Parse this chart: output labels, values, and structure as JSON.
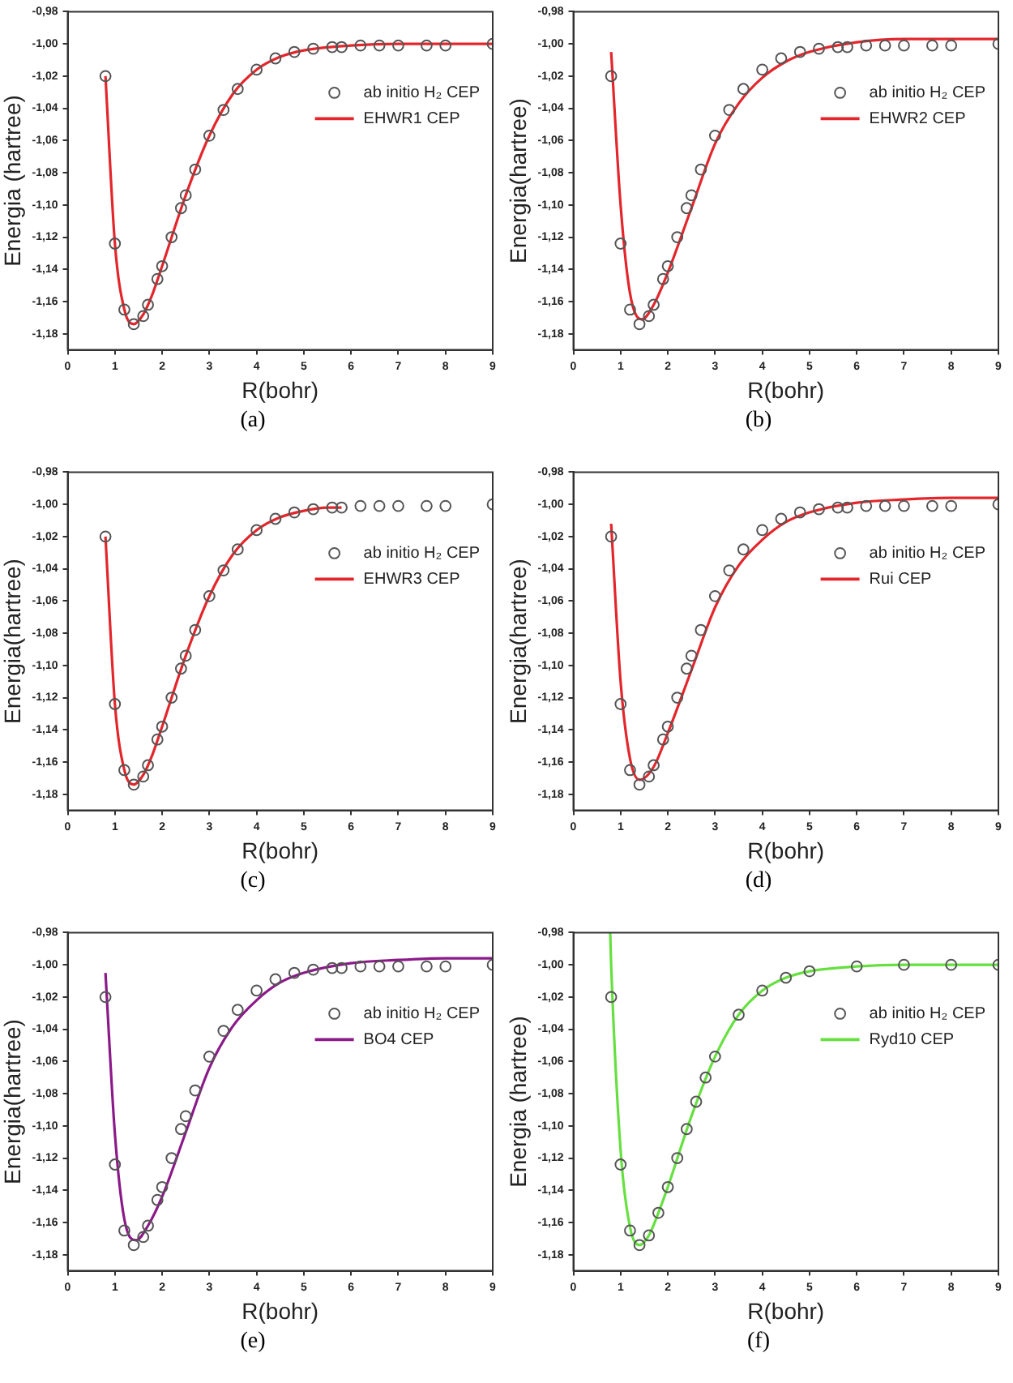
{
  "chart_data": [
    {
      "type": "scatter",
      "xlabel": "R(bohr)",
      "ylabel": "Energia (hartree)",
      "legend": "top right",
      "marker": "circle",
      "annotations": [
        "(a)"
      ],
      "xlim": [
        0,
        9
      ],
      "ylim": [
        -1.19,
        -0.98
      ],
      "xticks": [
        0,
        1,
        2,
        3,
        4,
        5,
        6,
        7,
        8,
        9
      ],
      "yticks": [
        {
          "value": -0.98,
          "label": "-0,98"
        },
        {
          "value": -1.0,
          "label": "-1,00"
        },
        {
          "value": -1.02,
          "label": "-1,02"
        },
        {
          "value": -1.04,
          "label": "-1,04"
        },
        {
          "value": -1.06,
          "label": "-1,06"
        },
        {
          "value": -1.08,
          "label": "-1,08"
        },
        {
          "value": -1.1,
          "label": "-1,10"
        },
        {
          "value": -1.12,
          "label": "-1,12"
        },
        {
          "value": -1.14,
          "label": "-1,14"
        },
        {
          "value": -1.16,
          "label": "-1,16"
        },
        {
          "value": -1.18,
          "label": "-1,18"
        }
      ],
      "series": [
        {
          "name": "ab initio H₂ CEP",
          "color": "#555555",
          "x": [
            0.8,
            1.0,
            1.2,
            1.4,
            1.6,
            1.7,
            1.9,
            2.0,
            2.2,
            2.4,
            2.5,
            2.7,
            3.0,
            3.3,
            3.6,
            4.0,
            4.4,
            4.8,
            5.2,
            5.6,
            5.8,
            6.2,
            6.6,
            7.0,
            7.6,
            8.0,
            9.0
          ],
          "values": [
            -1.02,
            -1.124,
            -1.165,
            -1.174,
            -1.169,
            -1.162,
            -1.146,
            -1.138,
            -1.12,
            -1.102,
            -1.094,
            -1.078,
            -1.057,
            -1.041,
            -1.028,
            -1.016,
            -1.009,
            -1.005,
            -1.003,
            -1.002,
            -1.002,
            -1.001,
            -1.001,
            -1.001,
            -1.001,
            -1.001,
            -1.0
          ]
        },
        {
          "name": "EHWR1 CEP",
          "type": "line",
          "marker": "none",
          "color": "#e3262b",
          "x": [
            0.8,
            1.0,
            1.2,
            1.4,
            1.6,
            1.8,
            2.0,
            2.5,
            3.0,
            3.5,
            4.0,
            4.5,
            5.0,
            6.0,
            7.0,
            8.0,
            9.0
          ],
          "values": [
            -1.02,
            -1.124,
            -1.165,
            -1.174,
            -1.168,
            -1.155,
            -1.138,
            -1.094,
            -1.057,
            -1.031,
            -1.016,
            -1.008,
            -1.004,
            -1.001,
            -1.0,
            -1.0,
            -1.0
          ]
        }
      ]
    },
    {
      "type": "scatter",
      "xlabel": "R(bohr)",
      "ylabel": "Energia(hartree)",
      "legend": "top right",
      "marker": "circle",
      "annotations": [
        "(b)"
      ],
      "xlim": [
        0,
        9
      ],
      "ylim": [
        -1.19,
        -0.98
      ],
      "xticks": [
        0,
        1,
        2,
        3,
        4,
        5,
        6,
        7,
        8,
        9
      ],
      "yticks": [
        {
          "value": -0.98,
          "label": "-0,98"
        },
        {
          "value": -1.0,
          "label": "-1,00"
        },
        {
          "value": -1.02,
          "label": "-1,02"
        },
        {
          "value": -1.04,
          "label": "-1,04"
        },
        {
          "value": -1.06,
          "label": "-1,06"
        },
        {
          "value": -1.08,
          "label": "-1,08"
        },
        {
          "value": -1.1,
          "label": "-1,10"
        },
        {
          "value": -1.12,
          "label": "-1,12"
        },
        {
          "value": -1.14,
          "label": "-1,14"
        },
        {
          "value": -1.16,
          "label": "-1,16"
        },
        {
          "value": -1.18,
          "label": "-1,18"
        }
      ],
      "series": [
        {
          "name": "ab initio H₂ CEP",
          "color": "#555555",
          "x": [
            0.8,
            1.0,
            1.2,
            1.4,
            1.6,
            1.7,
            1.9,
            2.0,
            2.2,
            2.4,
            2.5,
            2.7,
            3.0,
            3.3,
            3.6,
            4.0,
            4.4,
            4.8,
            5.2,
            5.6,
            5.8,
            6.2,
            6.6,
            7.0,
            7.6,
            8.0,
            9.0
          ],
          "values": [
            -1.02,
            -1.124,
            -1.165,
            -1.174,
            -1.169,
            -1.162,
            -1.146,
            -1.138,
            -1.12,
            -1.102,
            -1.094,
            -1.078,
            -1.057,
            -1.041,
            -1.028,
            -1.016,
            -1.009,
            -1.005,
            -1.003,
            -1.002,
            -1.002,
            -1.001,
            -1.001,
            -1.001,
            -1.001,
            -1.001,
            -1.0
          ]
        },
        {
          "name": "EHWR2 CEP",
          "type": "line",
          "marker": "none",
          "color": "#e3262b",
          "x": [
            0.8,
            1.0,
            1.2,
            1.45,
            1.7,
            2.0,
            2.5,
            3.0,
            3.5,
            4.0,
            4.5,
            5.0,
            6.0,
            7.0,
            8.0,
            9.0
          ],
          "values": [
            -1.005,
            -1.1,
            -1.155,
            -1.171,
            -1.162,
            -1.142,
            -1.102,
            -1.062,
            -1.037,
            -1.021,
            -1.011,
            -1.005,
            -0.999,
            -0.997,
            -0.997,
            -0.997
          ]
        }
      ]
    },
    {
      "type": "scatter",
      "xlabel": "R(bohr)",
      "ylabel": "Energia(hartree)",
      "legend": "top right",
      "marker": "circle",
      "annotations": [
        "(c)"
      ],
      "xlim": [
        0,
        9
      ],
      "ylim": [
        -1.19,
        -0.98
      ],
      "xticks": [
        0,
        1,
        2,
        3,
        4,
        5,
        6,
        7,
        8,
        9
      ],
      "yticks": [
        {
          "value": -0.98,
          "label": "-0,98"
        },
        {
          "value": -1.0,
          "label": "-1,00"
        },
        {
          "value": -1.02,
          "label": "-1,02"
        },
        {
          "value": -1.04,
          "label": "-1,04"
        },
        {
          "value": -1.06,
          "label": "-1,06"
        },
        {
          "value": -1.08,
          "label": "-1,08"
        },
        {
          "value": -1.1,
          "label": "-1,10"
        },
        {
          "value": -1.12,
          "label": "-1,12"
        },
        {
          "value": -1.14,
          "label": "-1,14"
        },
        {
          "value": -1.16,
          "label": "-1,16"
        },
        {
          "value": -1.18,
          "label": "-1,18"
        }
      ],
      "series": [
        {
          "name": "ab initio H₂ CEP",
          "color": "#555555",
          "x": [
            0.8,
            1.0,
            1.2,
            1.4,
            1.6,
            1.7,
            1.9,
            2.0,
            2.2,
            2.4,
            2.5,
            2.7,
            3.0,
            3.3,
            3.6,
            4.0,
            4.4,
            4.8,
            5.2,
            5.6,
            5.8,
            6.2,
            6.6,
            7.0,
            7.6,
            8.0,
            9.0
          ],
          "values": [
            -1.02,
            -1.124,
            -1.165,
            -1.174,
            -1.169,
            -1.162,
            -1.146,
            -1.138,
            -1.12,
            -1.102,
            -1.094,
            -1.078,
            -1.057,
            -1.041,
            -1.028,
            -1.016,
            -1.009,
            -1.005,
            -1.003,
            -1.002,
            -1.002,
            -1.001,
            -1.001,
            -1.001,
            -1.001,
            -1.001,
            -1.0
          ]
        },
        {
          "name": "EHWR3 CEP",
          "type": "line",
          "marker": "none",
          "color": "#e3262b",
          "x": [
            0.8,
            1.0,
            1.2,
            1.4,
            1.6,
            1.8,
            2.0,
            2.5,
            3.0,
            3.5,
            4.0,
            4.5,
            5.0,
            5.5,
            5.8
          ],
          "values": [
            -1.02,
            -1.124,
            -1.165,
            -1.174,
            -1.168,
            -1.155,
            -1.138,
            -1.094,
            -1.057,
            -1.031,
            -1.016,
            -1.008,
            -1.004,
            -1.002,
            -1.002
          ]
        }
      ]
    },
    {
      "type": "scatter",
      "xlabel": "R(bohr)",
      "ylabel": "Energia(hartree)",
      "legend": "top right",
      "marker": "circle",
      "annotations": [
        "(d)"
      ],
      "xlim": [
        0,
        9
      ],
      "ylim": [
        -1.19,
        -0.98
      ],
      "xticks": [
        0,
        1,
        2,
        3,
        4,
        5,
        6,
        7,
        8,
        9
      ],
      "yticks": [
        {
          "value": -0.98,
          "label": "-0,98"
        },
        {
          "value": -1.0,
          "label": "-1,00"
        },
        {
          "value": -1.02,
          "label": "-1,02"
        },
        {
          "value": -1.04,
          "label": "-1,04"
        },
        {
          "value": -1.06,
          "label": "-1,06"
        },
        {
          "value": -1.08,
          "label": "-1,08"
        },
        {
          "value": -1.1,
          "label": "-1,10"
        },
        {
          "value": -1.12,
          "label": "-1,12"
        },
        {
          "value": -1.14,
          "label": "-1,14"
        },
        {
          "value": -1.16,
          "label": "-1,16"
        },
        {
          "value": -1.18,
          "label": "-1,18"
        }
      ],
      "series": [
        {
          "name": "ab initio H₂ CEP",
          "color": "#555555",
          "x": [
            0.8,
            1.0,
            1.2,
            1.4,
            1.6,
            1.7,
            1.9,
            2.0,
            2.2,
            2.4,
            2.5,
            2.7,
            3.0,
            3.3,
            3.6,
            4.0,
            4.4,
            4.8,
            5.2,
            5.6,
            5.8,
            6.2,
            6.6,
            7.0,
            7.6,
            8.0,
            9.0
          ],
          "values": [
            -1.02,
            -1.124,
            -1.165,
            -1.174,
            -1.169,
            -1.162,
            -1.146,
            -1.138,
            -1.12,
            -1.102,
            -1.094,
            -1.078,
            -1.057,
            -1.041,
            -1.028,
            -1.016,
            -1.009,
            -1.005,
            -1.003,
            -1.002,
            -1.002,
            -1.001,
            -1.001,
            -1.001,
            -1.001,
            -1.001,
            -1.0
          ]
        },
        {
          "name": "Rui CEP",
          "type": "line",
          "marker": "none",
          "color": "#e3262b",
          "x": [
            0.8,
            1.0,
            1.2,
            1.4,
            1.7,
            2.0,
            2.5,
            3.0,
            3.5,
            4.0,
            4.5,
            5.0,
            6.0,
            7.0,
            8.0,
            9.0
          ],
          "values": [
            -1.012,
            -1.11,
            -1.158,
            -1.171,
            -1.163,
            -1.142,
            -1.103,
            -1.064,
            -1.038,
            -1.022,
            -1.011,
            -1.005,
            -0.999,
            -0.997,
            -0.996,
            -0.996
          ]
        }
      ]
    },
    {
      "type": "scatter",
      "xlabel": "R(bohr)",
      "ylabel": "Energia(hartree)",
      "legend": "top right",
      "marker": "circle",
      "annotations": [
        "(e)"
      ],
      "xlim": [
        0,
        9
      ],
      "ylim": [
        -1.19,
        -0.98
      ],
      "xticks": [
        0,
        1,
        2,
        3,
        4,
        5,
        6,
        7,
        8,
        9
      ],
      "yticks": [
        {
          "value": -0.98,
          "label": "-0,98"
        },
        {
          "value": -1.0,
          "label": "-1,00"
        },
        {
          "value": -1.02,
          "label": "-1,02"
        },
        {
          "value": -1.04,
          "label": "-1,04"
        },
        {
          "value": -1.06,
          "label": "-1,06"
        },
        {
          "value": -1.08,
          "label": "-1,08"
        },
        {
          "value": -1.1,
          "label": "-1,10"
        },
        {
          "value": -1.12,
          "label": "-1,12"
        },
        {
          "value": -1.14,
          "label": "-1,14"
        },
        {
          "value": -1.16,
          "label": "-1,16"
        },
        {
          "value": -1.18,
          "label": "-1,18"
        }
      ],
      "series": [
        {
          "name": "ab initio H₂ CEP",
          "color": "#555555",
          "x": [
            0.8,
            1.0,
            1.2,
            1.4,
            1.6,
            1.7,
            1.9,
            2.0,
            2.2,
            2.4,
            2.5,
            2.7,
            3.0,
            3.3,
            3.6,
            4.0,
            4.4,
            4.8,
            5.2,
            5.6,
            5.8,
            6.2,
            6.6,
            7.0,
            7.6,
            8.0,
            9.0
          ],
          "values": [
            -1.02,
            -1.124,
            -1.165,
            -1.174,
            -1.169,
            -1.162,
            -1.146,
            -1.138,
            -1.12,
            -1.102,
            -1.094,
            -1.078,
            -1.057,
            -1.041,
            -1.028,
            -1.016,
            -1.009,
            -1.005,
            -1.003,
            -1.002,
            -1.002,
            -1.001,
            -1.001,
            -1.001,
            -1.001,
            -1.001,
            -1.0
          ]
        },
        {
          "name": "BO4 CEP",
          "type": "line",
          "marker": "none",
          "color": "#8b1a89",
          "x": [
            0.8,
            1.0,
            1.2,
            1.45,
            1.7,
            2.0,
            2.5,
            3.0,
            3.5,
            4.0,
            4.5,
            5.0,
            6.0,
            7.0,
            8.0,
            9.0
          ],
          "values": [
            -1.005,
            -1.105,
            -1.158,
            -1.171,
            -1.162,
            -1.144,
            -1.104,
            -1.064,
            -1.038,
            -1.022,
            -1.011,
            -1.005,
            -0.999,
            -0.997,
            -0.996,
            -0.996
          ]
        }
      ]
    },
    {
      "type": "scatter",
      "xlabel": "R(bohr)",
      "ylabel": "Energia (hartree)",
      "legend": "top right",
      "marker": "circle",
      "annotations": [
        "(f)"
      ],
      "xlim": [
        0,
        9
      ],
      "ylim": [
        -1.19,
        -0.98
      ],
      "xticks": [
        0,
        1,
        2,
        3,
        4,
        5,
        6,
        7,
        8,
        9
      ],
      "yticks": [
        {
          "value": -0.98,
          "label": "-0,98"
        },
        {
          "value": -1.0,
          "label": "-1,00"
        },
        {
          "value": -1.02,
          "label": "-1,02"
        },
        {
          "value": -1.04,
          "label": "-1,04"
        },
        {
          "value": -1.06,
          "label": "-1,06"
        },
        {
          "value": -1.08,
          "label": "-1,08"
        },
        {
          "value": -1.1,
          "label": "-1,10"
        },
        {
          "value": -1.12,
          "label": "-1,12"
        },
        {
          "value": -1.14,
          "label": "-1,14"
        },
        {
          "value": -1.16,
          "label": "-1,16"
        },
        {
          "value": -1.18,
          "label": "-1,18"
        }
      ],
      "series": [
        {
          "name": "ab initio H₂ CEP",
          "color": "#555555",
          "x": [
            0.8,
            1.0,
            1.2,
            1.4,
            1.6,
            1.8,
            2.0,
            2.2,
            2.4,
            2.6,
            2.8,
            3.0,
            3.5,
            4.0,
            4.5,
            5.0,
            6.0,
            7.0,
            8.0,
            9.0
          ],
          "values": [
            -1.02,
            -1.124,
            -1.165,
            -1.174,
            -1.168,
            -1.154,
            -1.138,
            -1.12,
            -1.102,
            -1.085,
            -1.07,
            -1.057,
            -1.031,
            -1.016,
            -1.008,
            -1.004,
            -1.001,
            -1.0,
            -1.0,
            -1.0
          ]
        },
        {
          "name": "Ryd10 CEP",
          "type": "line",
          "marker": "none",
          "color": "#66e040",
          "x": [
            0.78,
            0.8,
            1.0,
            1.2,
            1.4,
            1.6,
            1.8,
            2.0,
            2.5,
            3.0,
            3.5,
            4.0,
            4.5,
            5.0,
            6.0,
            7.0,
            8.0,
            9.0
          ],
          "values": [
            -0.98,
            -1.0,
            -1.115,
            -1.163,
            -1.174,
            -1.168,
            -1.154,
            -1.138,
            -1.094,
            -1.057,
            -1.031,
            -1.016,
            -1.008,
            -1.004,
            -1.001,
            -1.0,
            -1.0,
            -1.0
          ]
        }
      ]
    }
  ]
}
